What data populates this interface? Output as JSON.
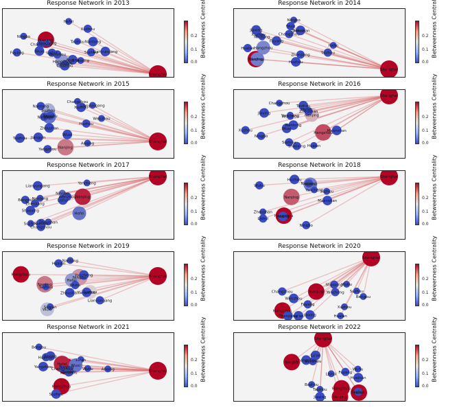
{
  "chart_data": [
    {
      "type": "network",
      "title": "Response Network in 2013",
      "hub": "Shanghai",
      "nodes": [
        {
          "name": "Shanghai",
          "centrality": 0.3
        },
        {
          "name": "Nanjing",
          "centrality": 0.3
        },
        {
          "name": "Hangzhou",
          "centrality": 0.08
        },
        {
          "name": "Yancheng",
          "centrality": 0.0
        },
        {
          "name": "Xuzhou",
          "centrality": 0.0
        },
        {
          "name": "Wuxi",
          "centrality": 0.0
        },
        {
          "name": "Hefei",
          "centrality": 0.0
        },
        {
          "name": "Suzhou",
          "centrality": 0.0
        },
        {
          "name": "Chuzhou",
          "centrality": 0.0
        },
        {
          "name": "Shaoxing",
          "centrality": 0.0
        },
        {
          "name": "Changzhou",
          "centrality": 0.0
        },
        {
          "name": "Lianyungang",
          "centrality": 0.0
        },
        {
          "name": "Taizhou",
          "centrality": 0.0
        },
        {
          "name": "Fuyang",
          "centrality": 0.0
        },
        {
          "name": "Anqing",
          "centrality": 0.0
        },
        {
          "name": "Ningbo",
          "centrality": 0.0
        },
        {
          "name": "Wenzhou",
          "centrality": 0.0
        },
        {
          "name": "Nantong",
          "centrality": 0.0
        },
        {
          "name": "Huaibei",
          "centrality": 0.0
        },
        {
          "name": "Lishui",
          "centrality": 0.0
        }
      ]
    },
    {
      "type": "network",
      "title": "Response Network in 2014",
      "hub": "Shanghai",
      "nodes": [
        {
          "name": "Shanghai",
          "centrality": 0.3
        },
        {
          "name": "Nanjing",
          "centrality": 0.3
        },
        {
          "name": "Hangzhou",
          "centrality": 0.06
        },
        {
          "name": "Xuzhou",
          "centrality": 0.0
        },
        {
          "name": "Wuxi",
          "centrality": 0.0
        },
        {
          "name": "Suzhou",
          "centrality": 0.05
        },
        {
          "name": "Jinhua",
          "centrality": 0.0
        },
        {
          "name": "Zhenjiang",
          "centrality": 0.0
        },
        {
          "name": "Fuyang",
          "centrality": 0.0
        },
        {
          "name": "Hefei",
          "centrality": 0.0
        },
        {
          "name": "Taizhou",
          "centrality": 0.0
        },
        {
          "name": "Huzhou",
          "centrality": 0.0
        },
        {
          "name": "Nantong",
          "centrality": 0.0
        },
        {
          "name": "Changzhou",
          "centrality": 0.0
        },
        {
          "name": "Zhoushan",
          "centrality": 0.0
        },
        {
          "name": "Ningbo",
          "centrality": 0.0
        },
        {
          "name": "Huaian",
          "centrality": 0.0
        },
        {
          "name": "Jiaxing",
          "centrality": 0.0
        }
      ]
    },
    {
      "type": "network",
      "title": "Response Network in 2015",
      "hub": "Shanghai",
      "nodes": [
        {
          "name": "Shanghai",
          "centrality": 0.3
        },
        {
          "name": "Nanjing",
          "centrality": 0.22
        },
        {
          "name": "Suzhou",
          "centrality": 0.1
        },
        {
          "name": "Hefei",
          "centrality": 0.04
        },
        {
          "name": "Ningbo",
          "centrality": 0.0
        },
        {
          "name": "Jiangyin",
          "centrality": 0.0
        },
        {
          "name": "Changzhou",
          "centrality": 0.0
        },
        {
          "name": "Yangzhou",
          "centrality": 0.0
        },
        {
          "name": "Xuzhou",
          "centrality": 0.0
        },
        {
          "name": "Lianyungang",
          "centrality": 0.0
        },
        {
          "name": "Bengbu",
          "centrality": 0.0
        },
        {
          "name": "Taizhou",
          "centrality": 0.0
        },
        {
          "name": "Anqing",
          "centrality": 0.0
        },
        {
          "name": "Huzhou",
          "centrality": 0.0
        },
        {
          "name": "Zhoushan",
          "centrality": 0.0
        },
        {
          "name": "Wenzhou",
          "centrality": 0.0
        },
        {
          "name": "Nantong",
          "centrality": 0.0
        },
        {
          "name": "Wuxi",
          "centrality": 0.0
        }
      ]
    },
    {
      "type": "network",
      "title": "Response Network in 2016",
      "hub": "Shanghai",
      "nodes": [
        {
          "name": "Shanghai",
          "centrality": 0.3
        },
        {
          "name": "Hangzhou",
          "centrality": 0.25
        },
        {
          "name": "Nanjing",
          "centrality": 0.18
        },
        {
          "name": "Changzhou",
          "centrality": 0.0
        },
        {
          "name": "Xuzhou",
          "centrality": 0.0
        },
        {
          "name": "Wuxi",
          "centrality": 0.0
        },
        {
          "name": "Hefei",
          "centrality": 0.0
        },
        {
          "name": "Ningbo",
          "centrality": 0.0
        },
        {
          "name": "Nantong",
          "centrality": 0.0
        },
        {
          "name": "Wenzhou",
          "centrality": 0.0
        },
        {
          "name": "Shaoxing",
          "centrality": 0.0
        },
        {
          "name": "Jiaxing",
          "centrality": 0.0
        },
        {
          "name": "Yancheng",
          "centrality": 0.0
        },
        {
          "name": "Suzhou",
          "centrality": 0.0
        },
        {
          "name": "Maanshan",
          "centrality": 0.0
        },
        {
          "name": "Huaian",
          "centrality": 0.0
        },
        {
          "name": "Zhoushan",
          "centrality": 0.0
        },
        {
          "name": "Taizhou",
          "centrality": 0.0
        }
      ]
    },
    {
      "type": "network",
      "title": "Response Network in 2017",
      "hub": "Shanghai",
      "nodes": [
        {
          "name": "Shanghai",
          "centrality": 0.3
        },
        {
          "name": "Nanjing",
          "centrality": 0.28
        },
        {
          "name": "Hefei",
          "centrality": 0.04
        },
        {
          "name": "Ningbo",
          "centrality": 0.03
        },
        {
          "name": "Changzhou",
          "centrality": 0.0
        },
        {
          "name": "Xuzhou",
          "centrality": 0.0
        },
        {
          "name": "Yancheng",
          "centrality": 0.0
        },
        {
          "name": "Zhenjiang",
          "centrality": 0.0
        },
        {
          "name": "Shaoxing",
          "centrality": 0.0
        },
        {
          "name": "Nantong",
          "centrality": 0.0
        },
        {
          "name": "Wenzhou",
          "centrality": 0.0
        },
        {
          "name": "Lishui",
          "centrality": 0.0
        },
        {
          "name": "Zhoushan",
          "centrality": 0.0
        },
        {
          "name": "Bengbu",
          "centrality": 0.0
        },
        {
          "name": "Lianyungang",
          "centrality": 0.0
        },
        {
          "name": "Suzhou",
          "centrality": 0.0
        }
      ]
    },
    {
      "type": "network",
      "title": "Response Network in 2018",
      "hub": "Shanghai",
      "nodes": [
        {
          "name": "Shanghai",
          "centrality": 0.3
        },
        {
          "name": "Nanjing",
          "centrality": 0.24
        },
        {
          "name": "Hangzhou",
          "centrality": 0.3
        },
        {
          "name": "Hefei",
          "centrality": 0.05
        },
        {
          "name": "Ningbo",
          "centrality": 0.0
        },
        {
          "name": "Jiaxing",
          "centrality": 0.0
        },
        {
          "name": "Yancheng",
          "centrality": 0.0
        },
        {
          "name": "Wuhu",
          "centrality": 0.0
        },
        {
          "name": "Huzhou",
          "centrality": 0.0
        },
        {
          "name": "Zhoushan",
          "centrality": 0.0
        },
        {
          "name": "Lishui",
          "centrality": 0.0
        },
        {
          "name": "Maanshan",
          "centrality": 0.0
        },
        {
          "name": "Suzhou",
          "centrality": 0.0
        },
        {
          "name": "Nantong",
          "centrality": 0.0
        }
      ]
    },
    {
      "type": "network",
      "title": "Response Network in 2019",
      "hub": "Shanghai",
      "nodes": [
        {
          "name": "Shanghai",
          "centrality": 0.3
        },
        {
          "name": "Hangzhou",
          "centrality": 0.3
        },
        {
          "name": "Nanjing",
          "centrality": 0.22
        },
        {
          "name": "Ningbo",
          "centrality": 0.2
        },
        {
          "name": "Suzhou",
          "centrality": 0.16
        },
        {
          "name": "Wuxi",
          "centrality": 0.12
        },
        {
          "name": "Hefei",
          "centrality": 0.08
        },
        {
          "name": "Huaian",
          "centrality": 0.0
        },
        {
          "name": "Yangzhou",
          "centrality": 0.0
        },
        {
          "name": "Suqian",
          "centrality": 0.0
        },
        {
          "name": "Wuhu",
          "centrality": 0.0
        },
        {
          "name": "Zhoushan",
          "centrality": 0.0
        },
        {
          "name": "Taizhou",
          "centrality": 0.0
        },
        {
          "name": "Lianyungang",
          "centrality": 0.0
        },
        {
          "name": "Yancheng",
          "centrality": 0.0
        },
        {
          "name": "Nantong",
          "centrality": 0.0
        }
      ]
    },
    {
      "type": "network",
      "title": "Response Network in 2020",
      "hub": "Shanghai",
      "nodes": [
        {
          "name": "Shanghai",
          "centrality": 0.3
        },
        {
          "name": "Hangzhou",
          "centrality": 0.3
        },
        {
          "name": "Nanjing",
          "centrality": 0.3
        },
        {
          "name": "Suzhou",
          "centrality": 0.0
        },
        {
          "name": "Yancheng",
          "centrality": 0.0
        },
        {
          "name": "Jiaxing",
          "centrality": 0.0
        },
        {
          "name": "Wuhu",
          "centrality": 0.0
        },
        {
          "name": "Shaoxing",
          "centrality": 0.0
        },
        {
          "name": "Zhenjiang",
          "centrality": 0.0
        },
        {
          "name": "Huaian",
          "centrality": 0.0
        },
        {
          "name": "Changzhou",
          "centrality": 0.0
        },
        {
          "name": "Lu'an",
          "centrality": 0.0
        },
        {
          "name": "Xuzhou",
          "centrality": 0.0
        },
        {
          "name": "Fuyang",
          "centrality": 0.0
        },
        {
          "name": "Wenzhou",
          "centrality": 0.0
        },
        {
          "name": "Bengbu",
          "centrality": 0.0
        }
      ]
    },
    {
      "type": "network",
      "title": "Response Network in 2021",
      "hub": "Shanghai",
      "nodes": [
        {
          "name": "Shanghai",
          "centrality": 0.3
        },
        {
          "name": "Hangzhou",
          "centrality": 0.3
        },
        {
          "name": "Nanjing",
          "centrality": 0.3
        },
        {
          "name": "Wuhu",
          "centrality": 0.0
        },
        {
          "name": "Hefei",
          "centrality": 0.28
        },
        {
          "name": "Suzhou",
          "centrality": 0.0
        },
        {
          "name": "Lu'an",
          "centrality": 0.0
        },
        {
          "name": "Wuxi",
          "centrality": 0.04
        },
        {
          "name": "Jiaxing",
          "centrality": 0.0
        },
        {
          "name": "Anqing",
          "centrality": 0.0
        },
        {
          "name": "Wenzhou",
          "centrality": 0.0
        },
        {
          "name": "Yangzhou",
          "centrality": 0.0
        },
        {
          "name": "Bengbu",
          "centrality": 0.0
        },
        {
          "name": "Huainan",
          "centrality": 0.0
        },
        {
          "name": "Suqian",
          "centrality": 0.0
        },
        {
          "name": "Changzhou",
          "centrality": 0.0
        }
      ]
    },
    {
      "type": "network",
      "title": "Response Network in 2022",
      "hub": "Shanghai",
      "nodes": [
        {
          "name": "Shanghai",
          "centrality": 0.3
        },
        {
          "name": "Hangzhou",
          "centrality": 0.3
        },
        {
          "name": "Nanjing",
          "centrality": 0.3
        },
        {
          "name": "Hefei",
          "centrality": 0.3
        },
        {
          "name": "Ningbo",
          "centrality": 0.3
        },
        {
          "name": "Jiaxing",
          "centrality": 0.0
        },
        {
          "name": "Wuhu",
          "centrality": 0.0
        },
        {
          "name": "Suzhou",
          "centrality": 0.0
        },
        {
          "name": "Huainan",
          "centrality": 0.0
        },
        {
          "name": "Lishui",
          "centrality": 0.0
        },
        {
          "name": "Wenzhou",
          "centrality": 0.0
        },
        {
          "name": "Changzhou",
          "centrality": 0.0
        },
        {
          "name": "Taizhou",
          "centrality": 0.0
        },
        {
          "name": "Fuyang",
          "centrality": 0.0
        },
        {
          "name": "Lu'an",
          "centrality": 0.0
        },
        {
          "name": "Bozhou",
          "centrality": 0.0
        }
      ]
    }
  ],
  "colorbar": {
    "label": "Betweenness Centrality",
    "ticks": [
      "0.0",
      "0.1",
      "0.2"
    ],
    "range": [
      0.0,
      0.3
    ],
    "low_color": "#3b4cc0",
    "mid_color": "#dddddd",
    "high_color": "#b40426"
  }
}
